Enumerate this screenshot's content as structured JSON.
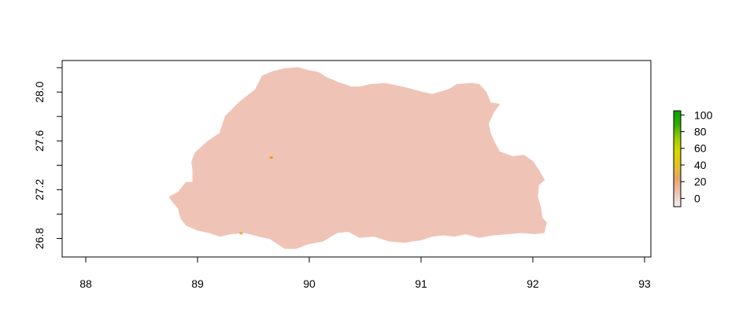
{
  "map": {
    "x_range": [
      88,
      93
    ],
    "y_range": [
      26.7,
      28.22
    ],
    "x_ticks": [
      {
        "value": 88,
        "label": "88"
      },
      {
        "value": 89,
        "label": "89"
      },
      {
        "value": 90,
        "label": "90"
      },
      {
        "value": 91,
        "label": "91"
      },
      {
        "value": 92,
        "label": "92"
      },
      {
        "value": 93,
        "label": "93"
      }
    ],
    "y_ticks": [
      {
        "value": 26.8,
        "label": "26.8"
      },
      {
        "value": 27.0,
        "label": ""
      },
      {
        "value": 27.2,
        "label": "27.2"
      },
      {
        "value": 27.4,
        "label": ""
      },
      {
        "value": 27.6,
        "label": "27.6"
      },
      {
        "value": 27.8,
        "label": ""
      },
      {
        "value": 28.0,
        "label": "28.0"
      },
      {
        "value": 28.2,
        "label": ""
      }
    ],
    "fill_color": "#efc4b6",
    "outline": [
      [
        88.75,
        27.14
      ],
      [
        88.83,
        27.18
      ],
      [
        88.9,
        27.26
      ],
      [
        88.96,
        27.26
      ],
      [
        88.96,
        27.36
      ],
      [
        88.95,
        27.43
      ],
      [
        88.98,
        27.5
      ],
      [
        89.05,
        27.56
      ],
      [
        89.1,
        27.6
      ],
      [
        89.2,
        27.66
      ],
      [
        89.25,
        27.8
      ],
      [
        89.38,
        27.92
      ],
      [
        89.52,
        28.02
      ],
      [
        89.58,
        28.13
      ],
      [
        89.68,
        28.17
      ],
      [
        89.78,
        28.19
      ],
      [
        89.9,
        28.2
      ],
      [
        89.97,
        28.18
      ],
      [
        90.08,
        28.16
      ],
      [
        90.15,
        28.12
      ],
      [
        90.25,
        28.08
      ],
      [
        90.38,
        28.04
      ],
      [
        90.45,
        28.04
      ],
      [
        90.55,
        28.06
      ],
      [
        90.68,
        28.07
      ],
      [
        90.88,
        28.03
      ],
      [
        91.0,
        28.0
      ],
      [
        91.1,
        27.98
      ],
      [
        91.25,
        28.02
      ],
      [
        91.32,
        28.06
      ],
      [
        91.45,
        28.07
      ],
      [
        91.52,
        28.06
      ],
      [
        91.58,
        28.0
      ],
      [
        91.62,
        27.91
      ],
      [
        91.7,
        27.9
      ],
      [
        91.65,
        27.84
      ],
      [
        91.6,
        27.74
      ],
      [
        91.62,
        27.66
      ],
      [
        91.66,
        27.58
      ],
      [
        91.7,
        27.51
      ],
      [
        91.82,
        27.47
      ],
      [
        91.92,
        27.48
      ],
      [
        92.0,
        27.43
      ],
      [
        92.05,
        27.36
      ],
      [
        92.1,
        27.28
      ],
      [
        92.05,
        27.24
      ],
      [
        92.04,
        27.14
      ],
      [
        92.07,
        27.05
      ],
      [
        92.08,
        26.97
      ],
      [
        92.12,
        26.93
      ],
      [
        92.1,
        26.85
      ],
      [
        92.02,
        26.84
      ],
      [
        91.9,
        26.85
      ],
      [
        91.78,
        26.84
      ],
      [
        91.65,
        26.83
      ],
      [
        91.52,
        26.81
      ],
      [
        91.4,
        26.84
      ],
      [
        91.3,
        26.82
      ],
      [
        91.2,
        26.83
      ],
      [
        91.1,
        26.82
      ],
      [
        91.0,
        26.79
      ],
      [
        90.85,
        26.77
      ],
      [
        90.72,
        26.78
      ],
      [
        90.58,
        26.82
      ],
      [
        90.45,
        26.81
      ],
      [
        90.35,
        26.86
      ],
      [
        90.25,
        26.85
      ],
      [
        90.12,
        26.78
      ],
      [
        90.0,
        26.76
      ],
      [
        89.88,
        26.72
      ],
      [
        89.78,
        26.72
      ],
      [
        89.65,
        26.8
      ],
      [
        89.55,
        26.82
      ],
      [
        89.42,
        26.85
      ],
      [
        89.3,
        26.84
      ],
      [
        89.2,
        26.82
      ],
      [
        89.1,
        26.85
      ],
      [
        89.0,
        26.87
      ],
      [
        88.9,
        26.91
      ],
      [
        88.85,
        26.97
      ],
      [
        88.83,
        27.05
      ],
      [
        88.78,
        27.1
      ]
    ],
    "hotspots": [
      {
        "lon": 89.66,
        "lat": 27.46,
        "color": "#e0a020"
      },
      {
        "lon": 89.39,
        "lat": 26.84,
        "color": "#e8b040"
      }
    ]
  },
  "legend": {
    "range": [
      -10,
      105
    ],
    "ticks": [
      {
        "value": 0,
        "label": "0"
      },
      {
        "value": 20,
        "label": "20"
      },
      {
        "value": 40,
        "label": "40"
      },
      {
        "value": 60,
        "label": "60"
      },
      {
        "value": 80,
        "label": "80"
      },
      {
        "value": 100,
        "label": "100"
      }
    ],
    "colors": [
      "#f2f2f2",
      "#efc4b6",
      "#e6a36d",
      "#e2c124",
      "#d8d800",
      "#99cc00",
      "#33aa00",
      "#00a600"
    ]
  }
}
